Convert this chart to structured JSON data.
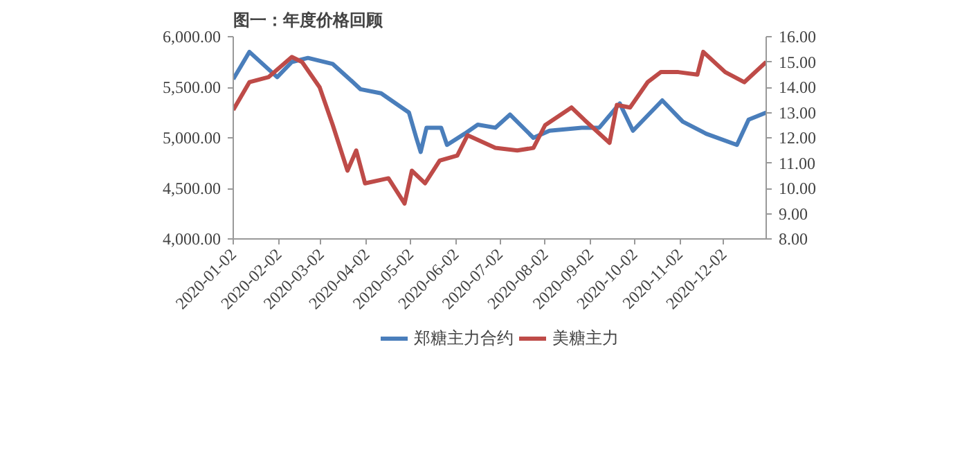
{
  "chart_data": {
    "type": "line",
    "title": "图一：年度价格回顾",
    "xlim": [
      "2020-01-02",
      "2020-12-31"
    ],
    "xticks": [
      "2020-01-02",
      "2020-02-02",
      "2020-03-02",
      "2020-04-02",
      "2020-05-02",
      "2020-06-02",
      "2020-07-02",
      "2020-08-02",
      "2020-09-02",
      "2020-10-02",
      "2020-11-02",
      "2020-12-02"
    ],
    "ylim": [
      4000,
      6000
    ],
    "yticks": [
      {
        "value": 4000,
        "label": "4,000.00"
      },
      {
        "value": 4500,
        "label": "4,500.00"
      },
      {
        "value": 5000,
        "label": "5,000.00"
      },
      {
        "value": 5500,
        "label": "5,500.00"
      },
      {
        "value": 6000,
        "label": "6,000.00"
      }
    ],
    "y2lim": [
      8,
      16
    ],
    "y2ticks": [
      {
        "value": 8,
        "label": "8.00"
      },
      {
        "value": 9,
        "label": "9.00"
      },
      {
        "value": 10,
        "label": "10.00"
      },
      {
        "value": 11,
        "label": "11.00"
      },
      {
        "value": 12,
        "label": "12.00"
      },
      {
        "value": 13,
        "label": "13.00"
      },
      {
        "value": 14,
        "label": "14.00"
      },
      {
        "value": 15,
        "label": "15.00"
      },
      {
        "value": 16,
        "label": "16.00"
      }
    ],
    "grid": false,
    "legend": "bottom",
    "series": [
      {
        "name": "郑糖主力合约",
        "color": "#4a7ebb",
        "x": [
          "2020-01-02",
          "2020-01-13",
          "2020-02-01",
          "2020-02-11",
          "2020-02-22",
          "2020-03-10",
          "2020-03-20",
          "2020-03-29",
          "2020-04-12",
          "2020-04-26",
          "2020-05-01",
          "2020-05-06",
          "2020-05-09",
          "2020-05-13",
          "2020-05-23",
          "2020-05-27",
          "2020-06-08",
          "2020-06-17",
          "2020-06-29",
          "2020-07-09",
          "2020-07-25",
          "2020-08-05",
          "2020-08-27",
          "2020-09-08",
          "2020-09-22",
          "2020-10-01",
          "2020-10-21",
          "2020-11-04",
          "2020-11-20",
          "2020-12-11",
          "2020-12-19",
          "2020-12-31"
        ],
        "values": [
          5580,
          5850,
          5600,
          5750,
          5790,
          5730,
          5600,
          5480,
          5440,
          5300,
          5250,
          5000,
          4860,
          5100,
          5100,
          4930,
          5040,
          5130,
          5100,
          5230,
          5000,
          5070,
          5100,
          5100,
          5340,
          5070,
          5370,
          5160,
          5040,
          4930,
          5180,
          5250
        ]
      },
      {
        "name": "美糖主力",
        "color": "#be4b48",
        "axis": "y2",
        "x": [
          "2020-01-02",
          "2020-01-13",
          "2020-01-26",
          "2020-02-11",
          "2020-02-18",
          "2020-03-01",
          "2020-03-10",
          "2020-03-20",
          "2020-03-26",
          "2020-04-01",
          "2020-04-17",
          "2020-04-28",
          "2020-05-03",
          "2020-05-12",
          "2020-05-22",
          "2020-06-03",
          "2020-06-10",
          "2020-06-29",
          "2020-07-14",
          "2020-07-25",
          "2020-08-02",
          "2020-08-20",
          "2020-08-29",
          "2020-09-15",
          "2020-09-20",
          "2020-09-29",
          "2020-10-11",
          "2020-10-20",
          "2020-11-01",
          "2020-11-14",
          "2020-11-18",
          "2020-12-03",
          "2020-12-16",
          "2020-12-31"
        ],
        "values": [
          13.1,
          14.2,
          14.4,
          15.2,
          15.0,
          14.0,
          12.5,
          10.7,
          11.5,
          10.2,
          10.4,
          9.4,
          10.7,
          10.2,
          11.1,
          11.3,
          12.1,
          11.6,
          11.5,
          11.6,
          12.5,
          13.2,
          12.7,
          11.8,
          13.3,
          13.2,
          14.2,
          14.6,
          14.6,
          14.5,
          15.4,
          14.6,
          14.2,
          15.0
        ]
      }
    ]
  }
}
